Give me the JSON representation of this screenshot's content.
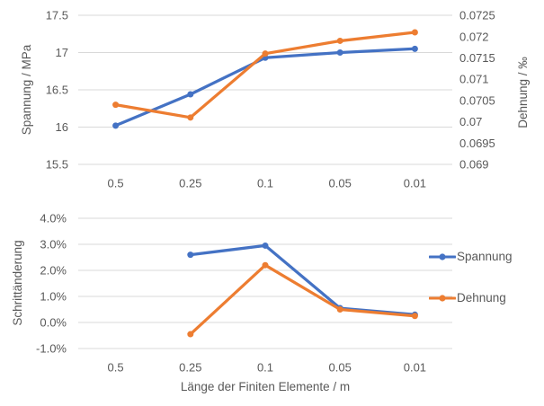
{
  "figure": {
    "background": "#ffffff",
    "text_color": "#595959",
    "gridline_color": "#d9d9d9"
  },
  "chart_data": [
    {
      "type": "line",
      "categories": [
        "0.5",
        "0.25",
        "0.1",
        "0.05",
        "0.01"
      ],
      "ylabel": "Spannung / MPa",
      "y2label": "Dehnung / ‰",
      "ylim": [
        15.5,
        17.5
      ],
      "yticks": [
        "17.5",
        "17",
        "16.5",
        "16",
        "15.5"
      ],
      "y2lim": [
        0.069,
        0.0725
      ],
      "y2ticks": [
        "0.0725",
        "0.072",
        "0.0715",
        "0.071",
        "0.0705",
        "0.07",
        "0.0695",
        "0.069"
      ],
      "grid": true,
      "legend_position": "none",
      "series": [
        {
          "name": "Spannung",
          "color": "#4472C4",
          "axis": "left",
          "values": [
            16.02,
            16.44,
            16.93,
            17.0,
            17.05
          ]
        },
        {
          "name": "Dehnung",
          "color": "#ED7D31",
          "axis": "right",
          "values": [
            0.0704,
            0.0701,
            0.0716,
            0.0719,
            0.0721
          ]
        }
      ]
    },
    {
      "type": "line",
      "categories": [
        "0.5",
        "0.25",
        "0.1",
        "0.05",
        "0.01"
      ],
      "ylabel": "Schrittänderung",
      "xlabel": "Länge der Finiten Elemente / m",
      "ylim": [
        -1.0,
        4.0
      ],
      "yticks": [
        "4.0%",
        "3.0%",
        "2.0%",
        "1.0%",
        "0.0%",
        "-1.0%"
      ],
      "grid": true,
      "legend_position": "right",
      "series": [
        {
          "name": "Spannung",
          "color": "#4472C4",
          "axis": "left",
          "values": [
            null,
            2.6,
            2.95,
            0.55,
            0.3
          ]
        },
        {
          "name": "Dehnung",
          "color": "#ED7D31",
          "axis": "left",
          "values": [
            null,
            -0.45,
            2.2,
            0.5,
            0.25
          ]
        }
      ]
    }
  ],
  "legend": {
    "items": [
      {
        "label": "Spannung",
        "color": "#4472C4"
      },
      {
        "label": "Dehnung",
        "color": "#ED7D31"
      }
    ]
  }
}
